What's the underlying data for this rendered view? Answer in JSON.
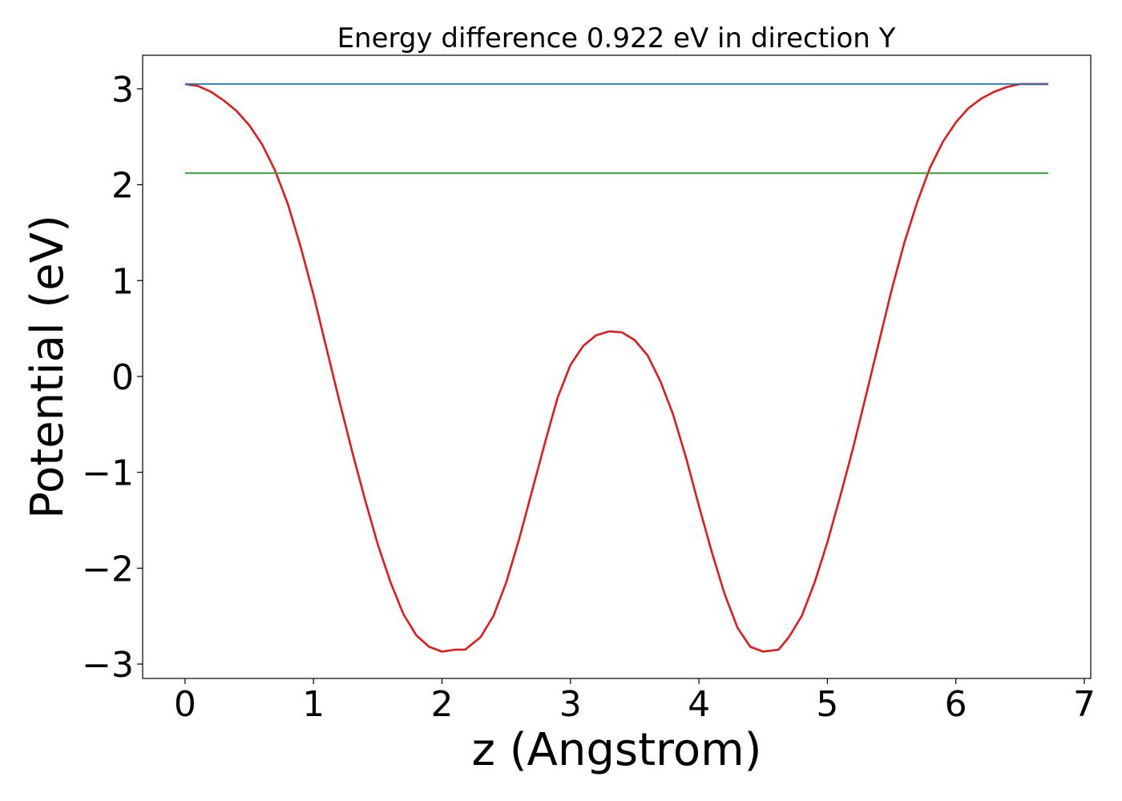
{
  "chart_data": {
    "type": "line",
    "title": "Energy difference 0.922 eV in direction Y",
    "xlabel": "z (Angstrom)",
    "ylabel": "Potential (eV)",
    "xlim": [
      -0.33,
      7.05
    ],
    "ylim": [
      -3.15,
      3.35
    ],
    "xticks": [
      0,
      1,
      2,
      3,
      4,
      5,
      6,
      7
    ],
    "xtick_labels": [
      "0",
      "1",
      "2",
      "3",
      "4",
      "5",
      "6",
      "7"
    ],
    "yticks": [
      -3,
      -2,
      -1,
      0,
      1,
      2,
      3
    ],
    "ytick_labels": [
      "−3",
      "−2",
      "−1",
      "0",
      "1",
      "2",
      "3"
    ],
    "grid": false,
    "legend": "none",
    "series": [
      {
        "color": "#e31a1c",
        "x": [
          0.0,
          0.1,
          0.2,
          0.3,
          0.4,
          0.5,
          0.6,
          0.7,
          0.8,
          0.9,
          1.0,
          1.1,
          1.2,
          1.3,
          1.4,
          1.5,
          1.6,
          1.7,
          1.8,
          1.9,
          2.0,
          2.1,
          2.18,
          2.3,
          2.4,
          2.5,
          2.6,
          2.7,
          2.8,
          2.9,
          3.0,
          3.1,
          3.2,
          3.3,
          3.4,
          3.5,
          3.6,
          3.7,
          3.8,
          3.9,
          4.0,
          4.1,
          4.2,
          4.3,
          4.4,
          4.5,
          4.62,
          4.7,
          4.8,
          4.9,
          5.0,
          5.1,
          5.2,
          5.3,
          5.4,
          5.5,
          5.6,
          5.7,
          5.8,
          5.9,
          6.0,
          6.1,
          6.2,
          6.3,
          6.4,
          6.5,
          6.6,
          6.72
        ],
        "y": [
          3.05,
          3.03,
          2.97,
          2.88,
          2.77,
          2.62,
          2.42,
          2.15,
          1.8,
          1.35,
          0.85,
          0.3,
          -0.25,
          -0.78,
          -1.28,
          -1.75,
          -2.15,
          -2.48,
          -2.7,
          -2.82,
          -2.87,
          -2.85,
          -2.85,
          -2.72,
          -2.5,
          -2.15,
          -1.7,
          -1.2,
          -0.7,
          -0.22,
          0.12,
          0.32,
          0.43,
          0.47,
          0.46,
          0.38,
          0.22,
          -0.05,
          -0.4,
          -0.85,
          -1.35,
          -1.83,
          -2.27,
          -2.62,
          -2.82,
          -2.87,
          -2.85,
          -2.72,
          -2.5,
          -2.15,
          -1.73,
          -1.25,
          -0.75,
          -0.2,
          0.35,
          0.9,
          1.4,
          1.82,
          2.18,
          2.45,
          2.65,
          2.8,
          2.9,
          2.97,
          3.02,
          3.05,
          3.05,
          3.05
        ]
      },
      {
        "color": "#1f77b4",
        "x": [
          0.0,
          6.72
        ],
        "y": [
          3.05,
          3.05
        ]
      },
      {
        "color": "#2ca02c",
        "x": [
          0.0,
          6.72
        ],
        "y": [
          2.12,
          2.12
        ]
      }
    ]
  }
}
